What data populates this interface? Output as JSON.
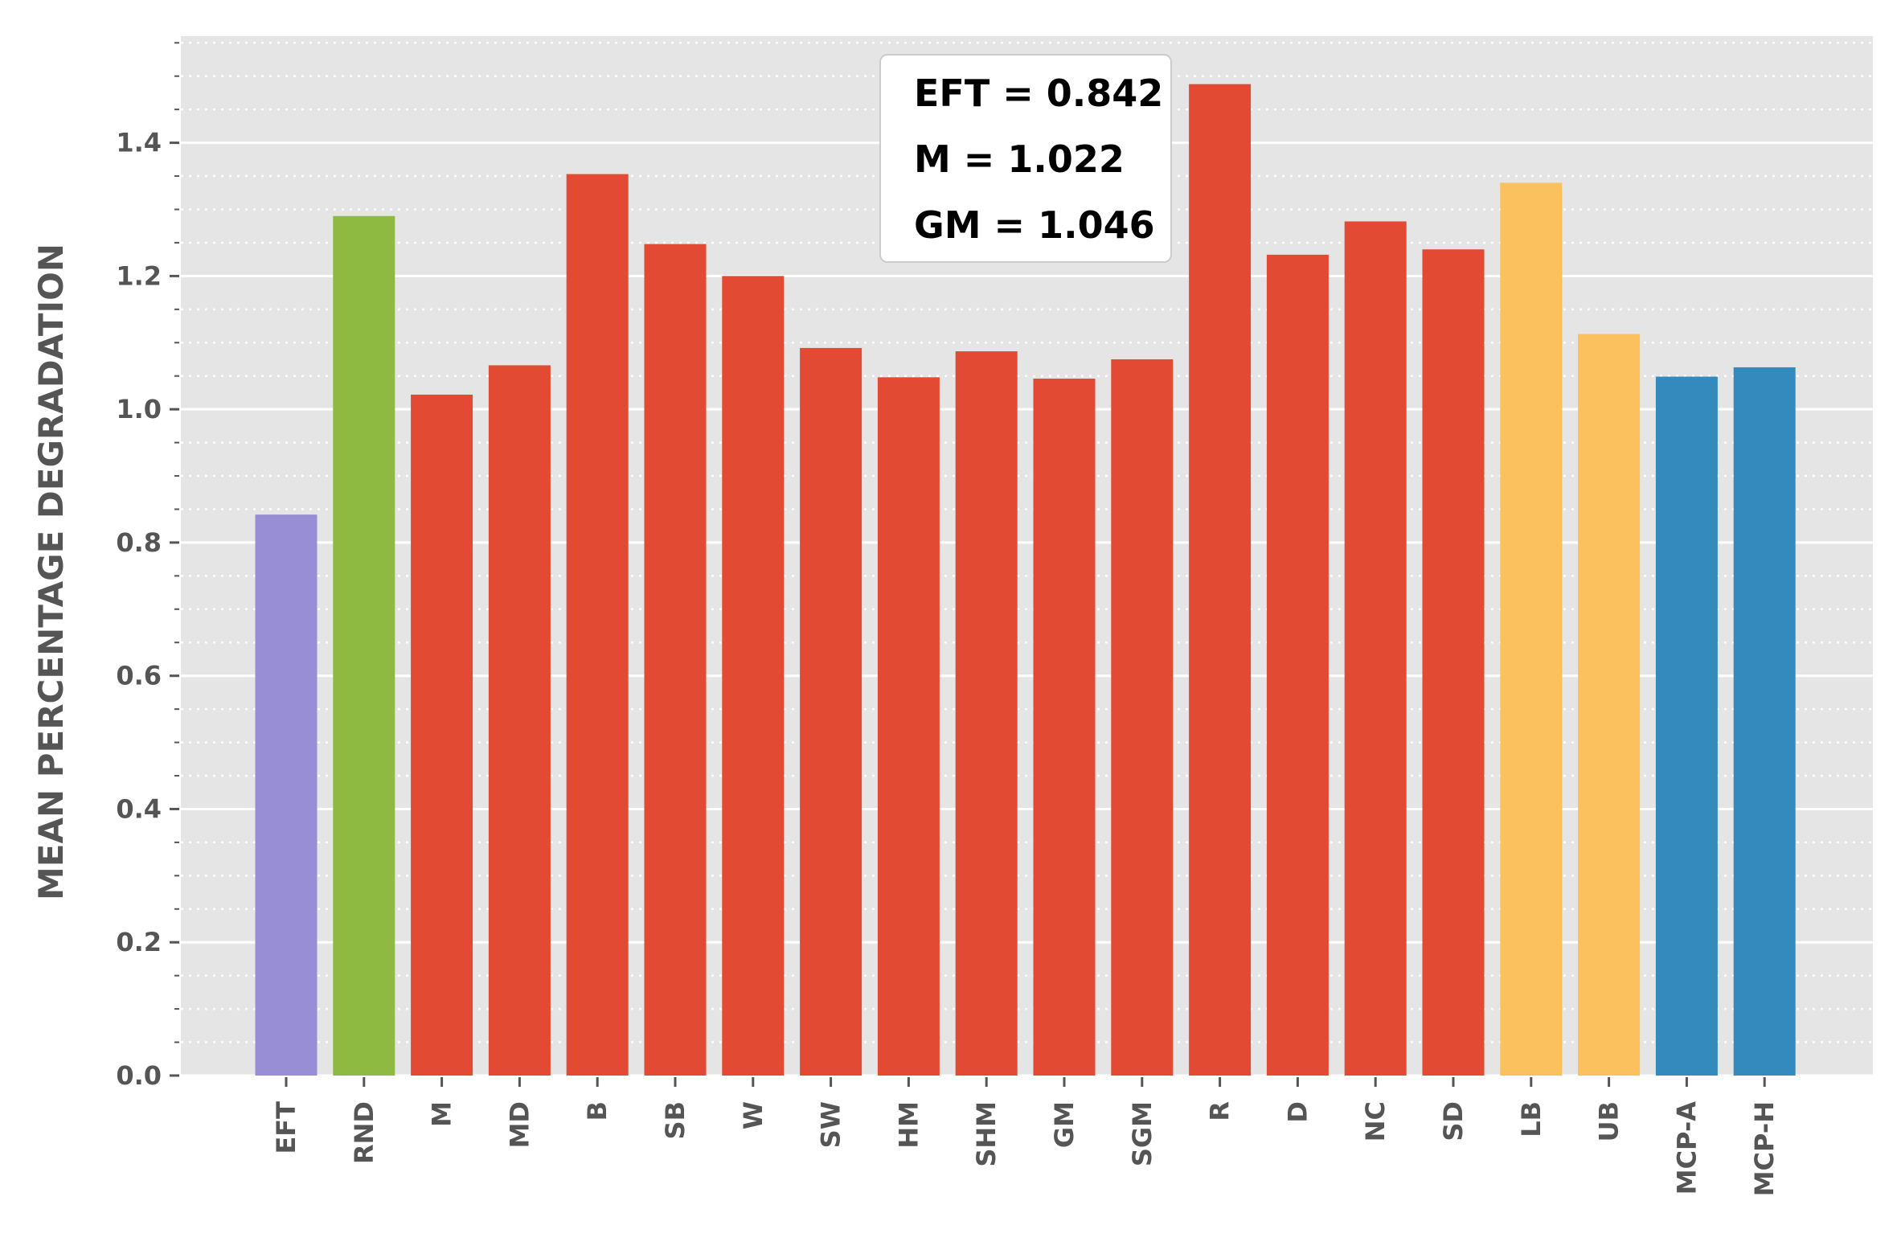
{
  "chart_data": {
    "type": "bar",
    "title": "",
    "xlabel": "",
    "ylabel": "MEAN PERCENTAGE DEGRADATION",
    "ylim": [
      0,
      1.56
    ],
    "yticks": [
      0.0,
      0.2,
      0.4,
      0.6,
      0.8,
      1.0,
      1.2,
      1.4
    ],
    "ytick_labels": [
      "0.0",
      "0.2",
      "0.4",
      "0.6",
      "0.8",
      "1.0",
      "1.2",
      "1.4"
    ],
    "grid": true,
    "categories": [
      "EFT",
      "RND",
      "M",
      "MD",
      "B",
      "SB",
      "W",
      "SW",
      "HM",
      "SHM",
      "GM",
      "SGM",
      "R",
      "D",
      "NC",
      "SD",
      "LB",
      "UB",
      "MCP-A",
      "MCP-H"
    ],
    "values": [
      0.842,
      1.29,
      1.022,
      1.066,
      1.353,
      1.248,
      1.2,
      1.092,
      1.048,
      1.087,
      1.046,
      1.075,
      1.488,
      1.232,
      1.282,
      1.24,
      1.34,
      1.113,
      1.049,
      1.063
    ],
    "bar_colors": [
      "#988ED5",
      "#8EBA42",
      "#E24A33",
      "#E24A33",
      "#E24A33",
      "#E24A33",
      "#E24A33",
      "#E24A33",
      "#E24A33",
      "#E24A33",
      "#E24A33",
      "#E24A33",
      "#E24A33",
      "#E24A33",
      "#E24A33",
      "#E24A33",
      "#FBC15E",
      "#FBC15E",
      "#348ABD",
      "#348ABD"
    ],
    "background_color": "#E5E5E5",
    "annotation_lines": [
      "EFT = 0.842",
      "M = 1.022",
      "GM = 1.046"
    ]
  }
}
